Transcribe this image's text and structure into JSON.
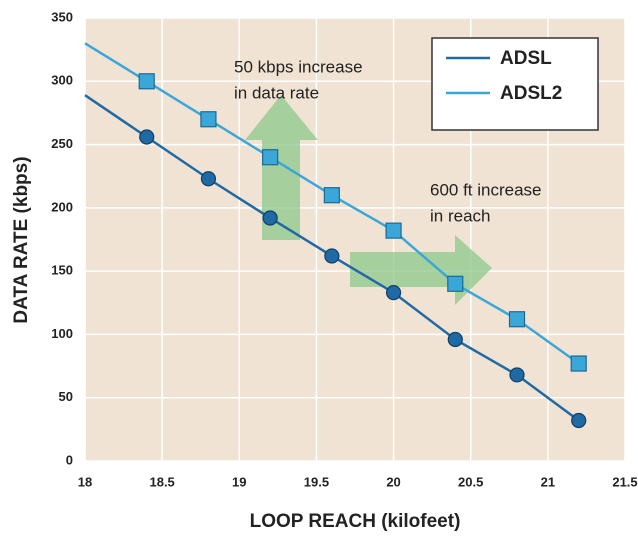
{
  "chart_data": {
    "type": "line",
    "x_label": "LOOP REACH (kilofeet)",
    "y_label": "DATA RATE (kbps)",
    "x": [
      18.4,
      18.8,
      19.2,
      19.6,
      20,
      20.4,
      20.8,
      21.2
    ],
    "series": [
      {
        "name": "ADSL",
        "color": "#1f6aa5",
        "marker": "circle",
        "values": [
          256,
          223,
          192,
          162,
          133,
          96,
          68,
          32
        ]
      },
      {
        "name": "ADSL2",
        "color": "#3ba7d9",
        "marker": "square",
        "values": [
          300,
          270,
          240,
          210,
          182,
          140,
          112,
          77
        ]
      }
    ],
    "xlim": [
      18,
      21.5
    ],
    "xticks": [
      18,
      18.5,
      19,
      19.5,
      20,
      20.5,
      21,
      21.5
    ],
    "ylim": [
      0,
      350
    ],
    "yticks": [
      0,
      50,
      100,
      150,
      200,
      250,
      300,
      350
    ],
    "grid": true,
    "legend": "upper right",
    "annotations": [
      {
        "lines": [
          "50 kbps increase",
          "in data rate"
        ]
      },
      {
        "lines": [
          "600 ft increase",
          "in reach"
        ]
      }
    ]
  }
}
